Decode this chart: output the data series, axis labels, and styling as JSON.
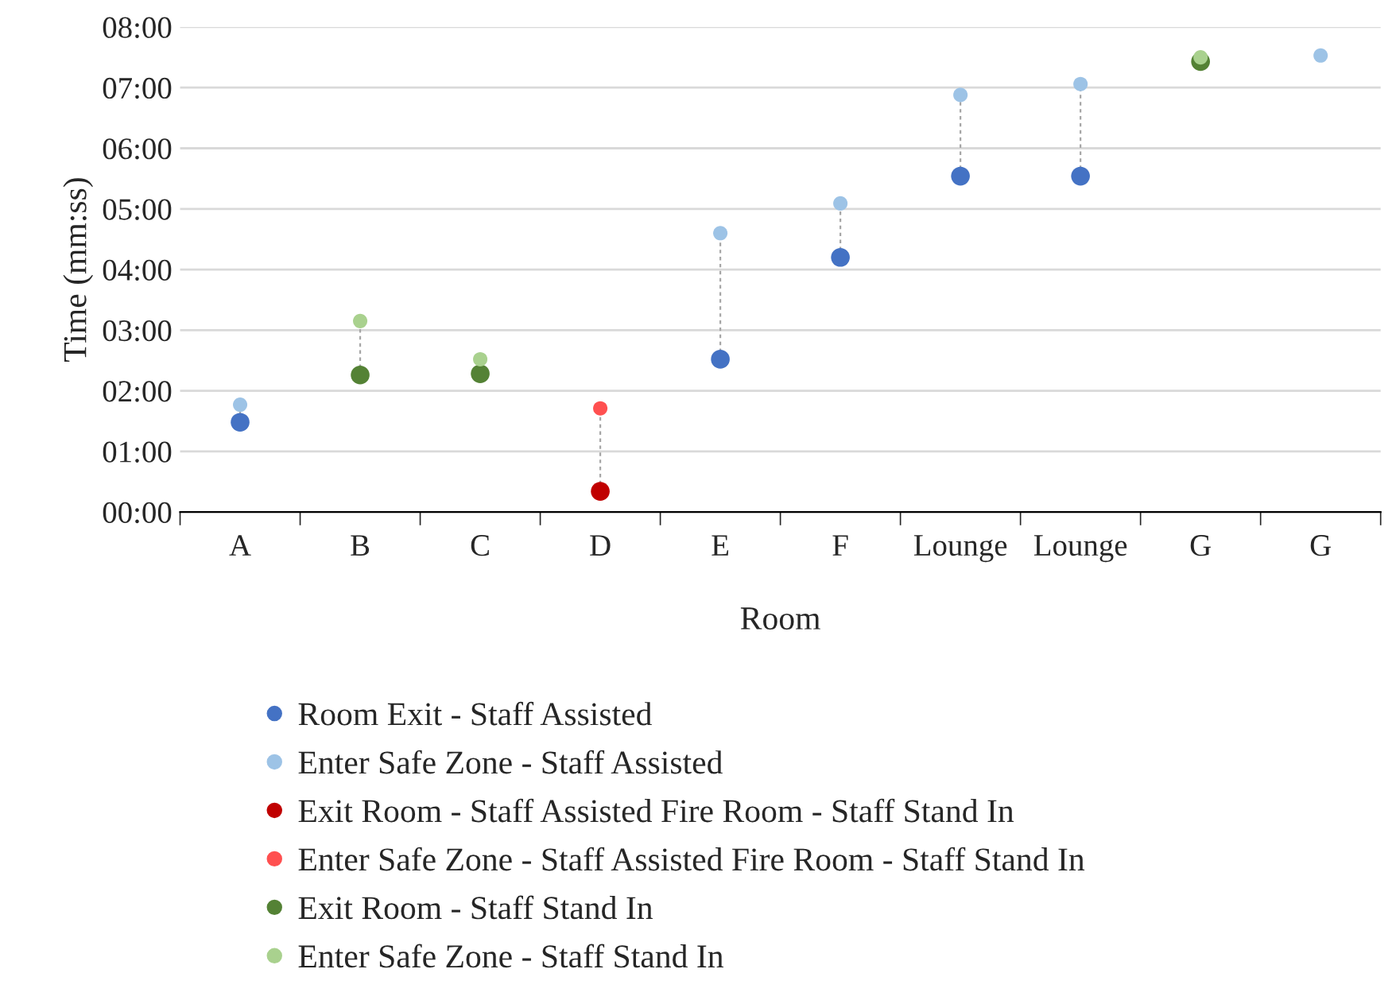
{
  "chart_data": {
    "type": "scatter",
    "xlabel": "Room",
    "ylabel": "Time (mm:ss)",
    "categories": [
      "A",
      "B",
      "C",
      "D",
      "E",
      "F",
      "Lounge",
      "Lounge",
      "G",
      "G"
    ],
    "series": [
      {
        "name": "Room Exit - Staff Assisted",
        "color": "#4472c4",
        "values": [
          1.48,
          null,
          null,
          null,
          2.52,
          4.2,
          5.54,
          5.54,
          null,
          null
        ]
      },
      {
        "name": "Enter Safe Zone - Staff Assisted",
        "color": "#9dc3e6",
        "values": [
          1.77,
          null,
          null,
          null,
          4.6,
          5.09,
          6.88,
          7.06,
          null,
          7.53
        ]
      },
      {
        "name": "Exit Room - Staff Assisted Fire Room - Staff Stand In",
        "color": "#c00000",
        "values": [
          null,
          null,
          null,
          0.34,
          null,
          null,
          null,
          null,
          null,
          null
        ]
      },
      {
        "name": "Enter Safe Zone - Staff Assisted Fire Room - Staff Stand In",
        "color": "#ff5050",
        "values": [
          null,
          null,
          null,
          1.71,
          null,
          null,
          null,
          null,
          null,
          null
        ]
      },
      {
        "name": "Exit Room - Staff Stand In",
        "color": "#548235",
        "values": [
          null,
          2.26,
          2.28,
          null,
          null,
          null,
          null,
          null,
          7.43,
          null
        ]
      },
      {
        "name": "Enter Safe Zone - Staff Stand In",
        "color": "#a9d18e",
        "values": [
          null,
          3.15,
          2.52,
          null,
          null,
          null,
          null,
          null,
          7.5,
          null
        ]
      }
    ],
    "ylim": [
      0,
      8
    ],
    "yticks": [
      {
        "value": 0,
        "label": "00:00"
      },
      {
        "value": 1,
        "label": "01:00"
      },
      {
        "value": 2,
        "label": "02:00"
      },
      {
        "value": 3,
        "label": "03:00"
      },
      {
        "value": 4,
        "label": "04:00"
      },
      {
        "value": 5,
        "label": "05:00"
      },
      {
        "value": 6,
        "label": "06:00"
      },
      {
        "value": 7,
        "label": "07:00"
      },
      {
        "value": 8,
        "label": "08:00"
      }
    ],
    "grid": "y",
    "legend": "bottom",
    "marker": "circle"
  }
}
